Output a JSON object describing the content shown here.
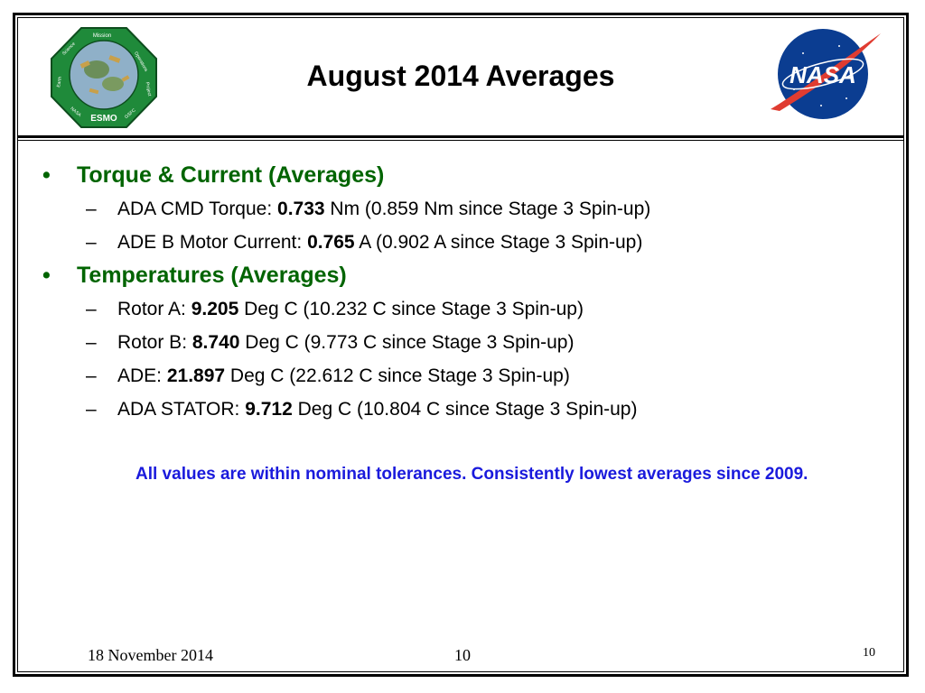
{
  "slide": {
    "title": "August 2014 Averages",
    "sections": [
      {
        "heading": "Torque & Current (Averages)",
        "items": [
          {
            "prefix": "ADA CMD Torque: ",
            "value": "0.733",
            "suffix": " Nm (0.859 Nm since Stage 3 Spin-up)"
          },
          {
            "prefix": "ADE B Motor Current: ",
            "value": "0.765",
            "suffix": " A (0.902 A since Stage 3 Spin-up)"
          }
        ]
      },
      {
        "heading": "Temperatures (Averages)",
        "items": [
          {
            "prefix": "Rotor A: ",
            "value": "9.205",
            "suffix": " Deg C (10.232 C since Stage 3 Spin-up)"
          },
          {
            "prefix": "Rotor B: ",
            "value": "8.740",
            "suffix": " Deg C (9.773 C since Stage 3 Spin-up)"
          },
          {
            "prefix": "ADE: ",
            "value": "21.897",
            "suffix": " Deg C (22.612 C since Stage 3 Spin-up)"
          },
          {
            "prefix": "ADA STATOR: ",
            "value": "9.712",
            "suffix": " Deg C (10.804 C since Stage 3 Spin-up)"
          }
        ]
      }
    ],
    "note": "All values are within nominal tolerances. Consistently lowest averages since 2009.",
    "bullet_symbol": "•",
    "dash_symbol": "–"
  },
  "logos": {
    "esmo": {
      "center_text": "ESMO",
      "ring_text": [
        "Mission",
        "Operations",
        "Project",
        "GSFC",
        "NASA",
        "Earth",
        "Science"
      ]
    },
    "nasa": {
      "wordmark": "NASA"
    }
  },
  "footer": {
    "date": "18 November 2014",
    "page_center": "10",
    "page_number": "10"
  },
  "colors": {
    "heading": "#006400",
    "note": "#1a1adc",
    "esmo_green": "#1f8a3a",
    "nasa_blue": "#0b3d91",
    "nasa_red": "#e03c31"
  }
}
